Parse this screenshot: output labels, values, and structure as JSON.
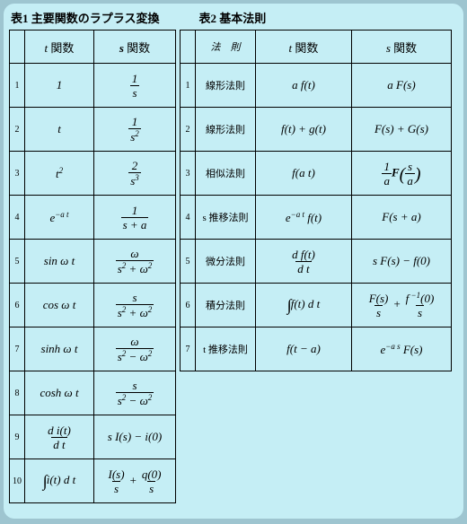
{
  "title1": "表1 主要関数のラプラス変換",
  "title2": "表2 基本法則",
  "h": {
    "t": "t ",
    "s": "s ",
    "fn": "関数",
    "law": "法　則"
  },
  "t1": [
    {
      "n": "1",
      "t": "1",
      "s": {
        "num": "1",
        "den": "s"
      }
    },
    {
      "n": "2",
      "t": "t",
      "s": {
        "num": "1",
        "den": "s<sup>2</sup>"
      }
    },
    {
      "n": "3",
      "t": "t<sup>2</sup>",
      "s": {
        "num": "2",
        "den": "s<sup>3</sup>"
      }
    },
    {
      "n": "4",
      "t": "e<sup>−a t</sup>",
      "s": {
        "num": "1",
        "den": "s + a"
      }
    },
    {
      "n": "5",
      "t": "sin ω t",
      "s": {
        "num": "ω",
        "den": "s<sup>2</sup> + ω<sup>2</sup>"
      }
    },
    {
      "n": "6",
      "t": "cos ω t",
      "s": {
        "num": "s",
        "den": "s<sup>2</sup> + ω<sup>2</sup>"
      }
    },
    {
      "n": "7",
      "t": "sinh ω t",
      "s": {
        "num": "ω",
        "den": "s<sup>2</sup> − ω<sup>2</sup>"
      }
    },
    {
      "n": "8",
      "t": "cosh ω t",
      "s": {
        "num": "s",
        "den": "s<sup>2</sup> − ω<sup>2</sup>"
      }
    },
    {
      "n": "9",
      "tf": {
        "num": "d i(t)",
        "den": "d t"
      },
      "sr": "s I(s) − i(0)"
    },
    {
      "n": "10",
      "tr": "<span class='int'>∫</span>i(t) d t",
      "sf2": [
        {
          "num": "I(s)",
          "den": "s"
        },
        {
          "num": "q(0)",
          "den": "s"
        }
      ]
    }
  ],
  "t2": [
    {
      "n": "1",
      "l": "線形法則",
      "t": "a f(t)",
      "s": "a F(s)"
    },
    {
      "n": "2",
      "l": "線形法則",
      "t": "f(t) + g(t)",
      "s": "F(s) + G(s)"
    },
    {
      "n": "3",
      "l": "相似法則",
      "t": "f(a t)",
      "sf": {
        "num": "1",
        "den": "a",
        "after": "<b>F</b><span class='bigp'>(</span><span class='frac'><span class='fn'>s</span><span class='fd'>a</span></span><span class='bigp'>)</span>"
      }
    },
    {
      "n": "4",
      "l": "s 推移法則",
      "t": "e<sup>−a t</sup> f(t)",
      "s": "F(s + a)"
    },
    {
      "n": "5",
      "l": "微分法則",
      "tf": {
        "num": "d f(t)",
        "den": "d t"
      },
      "s": "s F(s) − f(0)"
    },
    {
      "n": "6",
      "l": "積分法則",
      "t": "<span class='int'>∫</span>f(t) d t",
      "sf2": [
        {
          "num": "F(s)",
          "den": "s"
        },
        {
          "num": "f<sup> −1</sup>(0)",
          "den": "s"
        }
      ]
    },
    {
      "n": "7",
      "l": "t 推移法則",
      "t": "f(t − a)",
      "s": "e<sup>−a s</sup> F(s)"
    }
  ]
}
